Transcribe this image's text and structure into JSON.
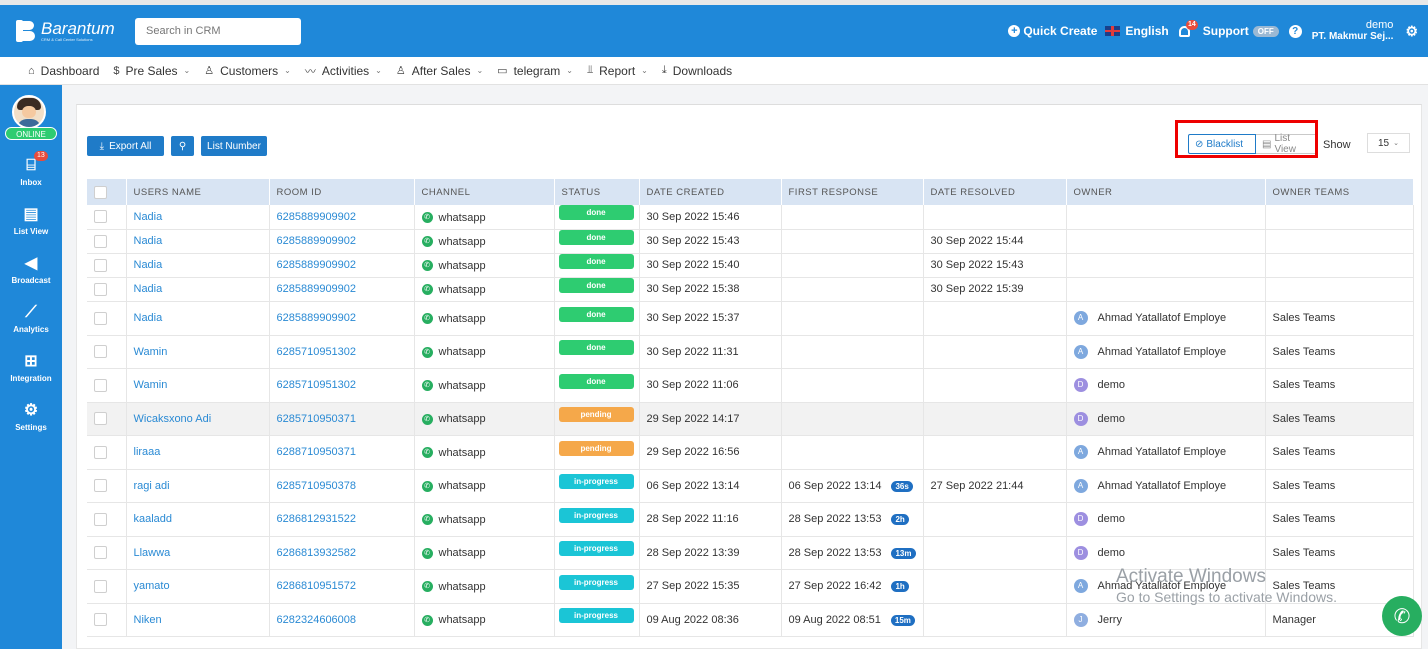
{
  "header": {
    "logo_name": "Barantum",
    "logo_tagline": "CRM & Call Center Solutions",
    "search_placeholder": "Search in CRM",
    "quick_create": "Quick Create",
    "language": "English",
    "notification_count": "14",
    "support_label": "Support",
    "support_toggle": "OFF",
    "user_name": "demo",
    "user_company": "PT. Makmur Sej..."
  },
  "menu": [
    {
      "label": "Dashboard",
      "icon": "home-icon",
      "glyph": "⌂",
      "dropdown": false
    },
    {
      "label": "Pre Sales",
      "icon": "dollar-icon",
      "glyph": "$",
      "dropdown": true
    },
    {
      "label": "Customers",
      "icon": "users-icon",
      "glyph": "♙",
      "dropdown": true
    },
    {
      "label": "Activities",
      "icon": "activity-icon",
      "glyph": "〰",
      "dropdown": true
    },
    {
      "label": "After Sales",
      "icon": "users-icon",
      "glyph": "♙",
      "dropdown": true
    },
    {
      "label": "telegram",
      "icon": "folder-icon",
      "glyph": "▭",
      "dropdown": true
    },
    {
      "label": "Report",
      "icon": "chart-icon",
      "glyph": "⫫",
      "dropdown": true
    },
    {
      "label": "Downloads",
      "icon": "download-icon",
      "glyph": "⤓",
      "dropdown": false
    }
  ],
  "sidebar": {
    "status": "ONLINE",
    "items": [
      {
        "label": "Inbox",
        "icon": "inbox-icon",
        "glyph": "⌸",
        "badge": "13"
      },
      {
        "label": "List View",
        "icon": "list-view-icon",
        "glyph": "▤",
        "badge": ""
      },
      {
        "label": "Broadcast",
        "icon": "megaphone-icon",
        "glyph": "◀",
        "badge": ""
      },
      {
        "label": "Analytics",
        "icon": "analytics-icon",
        "glyph": "⟋",
        "badge": ""
      },
      {
        "label": "Integration",
        "icon": "grid-icon",
        "glyph": "⊞",
        "badge": ""
      },
      {
        "label": "Settings",
        "icon": "gear-icon",
        "glyph": "⚙",
        "badge": ""
      }
    ]
  },
  "toolbar": {
    "export_label": "Export All",
    "list_number_label": "List Number",
    "blacklist_label": "Blacklist",
    "list_view_label": "List View",
    "show_label": "Show",
    "show_value": "15"
  },
  "table": {
    "columns": [
      "USERS NAME",
      "ROOM ID",
      "CHANNEL",
      "STATUS",
      "DATE CREATED",
      "FIRST RESPONSE",
      "DATE RESOLVED",
      "OWNER",
      "OWNER TEAMS"
    ],
    "rows": [
      {
        "user": "Nadia",
        "room": "6285889909902",
        "channel": "whatsapp",
        "status": "done",
        "created": "30 Sep 2022 15:46",
        "first": "",
        "dur": "",
        "resolved": "",
        "owner": "",
        "owner_initial": "",
        "team": ""
      },
      {
        "user": "Nadia",
        "room": "6285889909902",
        "channel": "whatsapp",
        "status": "done",
        "created": "30 Sep 2022 15:43",
        "first": "",
        "dur": "",
        "resolved": "30 Sep 2022 15:44",
        "owner": "",
        "owner_initial": "",
        "team": ""
      },
      {
        "user": "Nadia",
        "room": "6285889909902",
        "channel": "whatsapp",
        "status": "done",
        "created": "30 Sep 2022 15:40",
        "first": "",
        "dur": "",
        "resolved": "30 Sep 2022 15:43",
        "owner": "",
        "owner_initial": "",
        "team": ""
      },
      {
        "user": "Nadia",
        "room": "6285889909902",
        "channel": "whatsapp",
        "status": "done",
        "created": "30 Sep 2022 15:38",
        "first": "",
        "dur": "",
        "resolved": "30 Sep 2022 15:39",
        "owner": "",
        "owner_initial": "",
        "team": ""
      },
      {
        "user": "Nadia",
        "room": "6285889909902",
        "channel": "whatsapp",
        "status": "done",
        "created": "30 Sep 2022 15:37",
        "first": "",
        "dur": "",
        "resolved": "",
        "owner": "Ahmad Yatallatof Employe",
        "owner_initial": "A",
        "team": "Sales Teams"
      },
      {
        "user": "Wamin",
        "room": "6285710951302",
        "channel": "whatsapp",
        "status": "done",
        "created": "30 Sep 2022 11:31",
        "first": "",
        "dur": "",
        "resolved": "",
        "owner": "Ahmad Yatallatof Employe",
        "owner_initial": "A",
        "team": "Sales Teams"
      },
      {
        "user": "Wamin",
        "room": "6285710951302",
        "channel": "whatsapp",
        "status": "done",
        "created": "30 Sep 2022 11:06",
        "first": "",
        "dur": "",
        "resolved": "",
        "owner": "demo",
        "owner_initial": "D",
        "team": "Sales Teams"
      },
      {
        "user": "Wicaksxono Adi",
        "room": "6285710950371",
        "channel": "whatsapp",
        "status": "pending",
        "created": "29 Sep 2022 14:17",
        "first": "",
        "dur": "",
        "resolved": "",
        "owner": "demo",
        "owner_initial": "D",
        "team": "Sales Teams"
      },
      {
        "user": "liraaa",
        "room": "6288710950371",
        "channel": "whatsapp",
        "status": "pending",
        "created": "29 Sep 2022 16:56",
        "first": "",
        "dur": "",
        "resolved": "",
        "owner": "Ahmad Yatallatof Employe",
        "owner_initial": "A",
        "team": "Sales Teams"
      },
      {
        "user": "ragi adi",
        "room": "6285710950378",
        "channel": "whatsapp",
        "status": "in-progress",
        "created": "06 Sep 2022 13:14",
        "first": "06 Sep 2022 13:14",
        "dur": "36s",
        "resolved": "27 Sep 2022 21:44",
        "owner": "Ahmad Yatallatof Employe",
        "owner_initial": "A",
        "team": "Sales Teams"
      },
      {
        "user": "kaaladd",
        "room": "6286812931522",
        "channel": "whatsapp",
        "status": "in-progress",
        "created": "28 Sep 2022 11:16",
        "first": "28 Sep 2022 13:53",
        "dur": "2h",
        "resolved": "",
        "owner": "demo",
        "owner_initial": "D",
        "team": "Sales Teams"
      },
      {
        "user": "Llawwa",
        "room": "6286813932582",
        "channel": "whatsapp",
        "status": "in-progress",
        "created": "28 Sep 2022 13:39",
        "first": "28 Sep 2022 13:53",
        "dur": "13m",
        "resolved": "",
        "owner": "demo",
        "owner_initial": "D",
        "team": "Sales Teams"
      },
      {
        "user": "yamato",
        "room": "6286810951572",
        "channel": "whatsapp",
        "status": "in-progress",
        "created": "27 Sep 2022 15:35",
        "first": "27 Sep 2022 16:42",
        "dur": "1h",
        "resolved": "",
        "owner": "Ahmad Yatallatof Employe",
        "owner_initial": "A",
        "team": "Sales Teams"
      },
      {
        "user": "Niken",
        "room": "6282324606008",
        "channel": "whatsapp",
        "status": "in-progress",
        "created": "09 Aug 2022 08:36",
        "first": "09 Aug 2022 08:51",
        "dur": "15m",
        "resolved": "",
        "owner": "Jerry",
        "owner_initial": "J",
        "team": "Manager"
      }
    ]
  },
  "overlay": {
    "activate_line1": "Activate Windows",
    "activate_line2": "Go to Settings to activate Windows."
  }
}
